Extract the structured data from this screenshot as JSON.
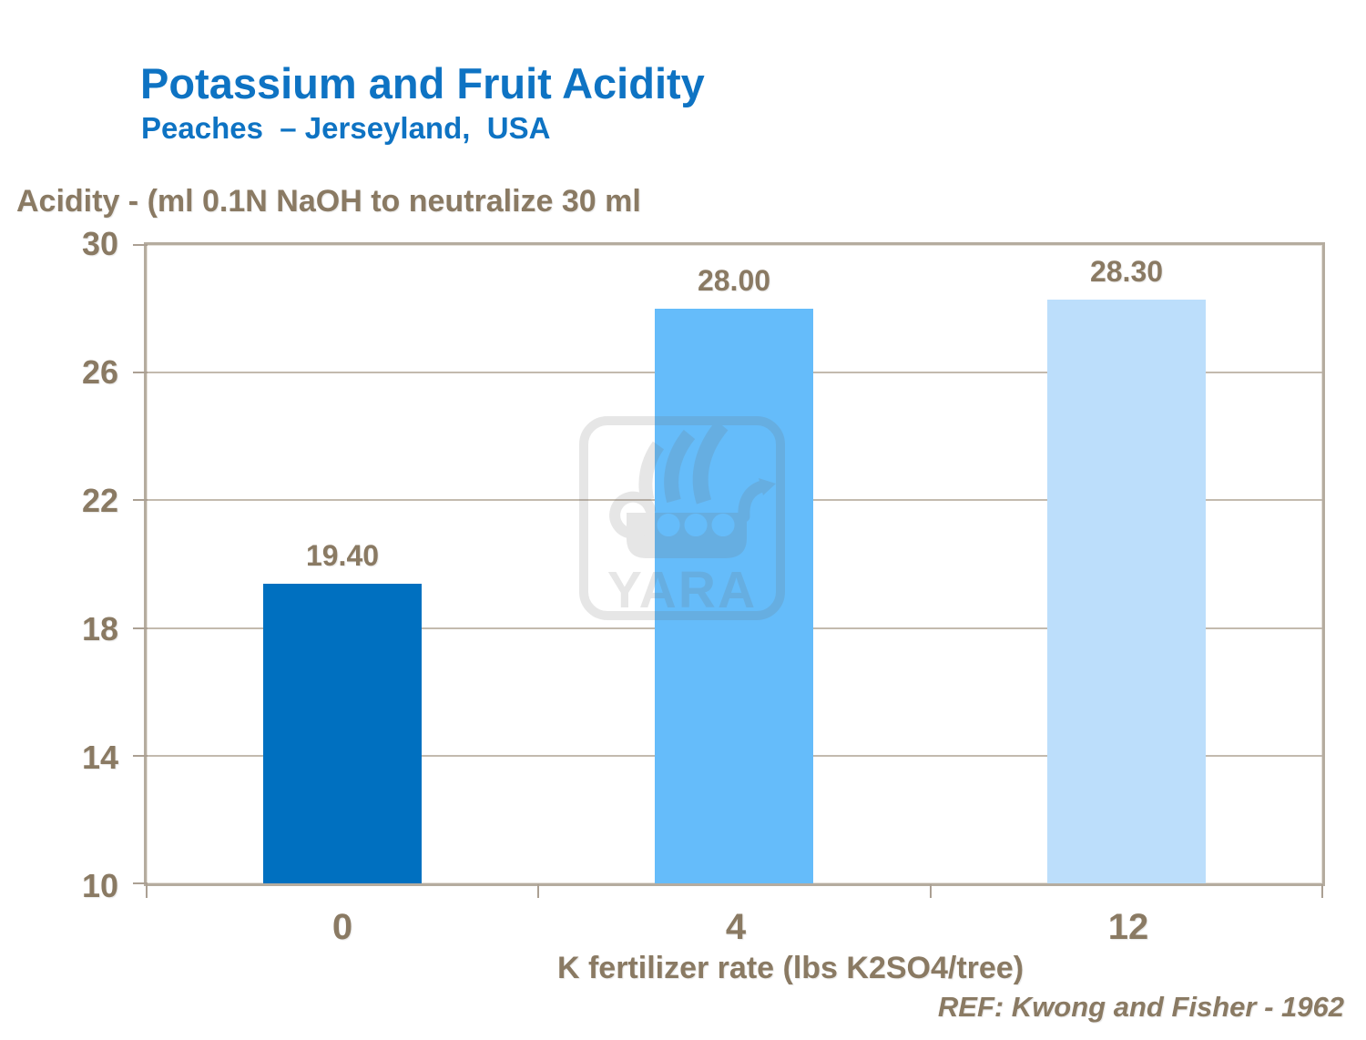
{
  "header": {
    "title": "Potassium and Fruit Acidity",
    "subtitle": "Peaches  – Jerseyland,  USA"
  },
  "watermark": {
    "text": "YARA",
    "icon": "yara-viking-ship-logo"
  },
  "footer": {
    "reference": "REF: Kwong and Fisher - 1962"
  },
  "colors": {
    "title_blue": "#0E73C3",
    "axis_text_brown": "#8A7A63",
    "frame_tan": "#B5AC9F",
    "gridline_tan": "#C3BAAE",
    "bar_dark_blue": "#0070C0",
    "bar_medium_blue": "#65BCFA",
    "bar_light_blue": "#BCDEFB"
  },
  "chart_data": {
    "type": "bar",
    "title": "Potassium and Fruit Acidity",
    "subtitle": "Peaches – Jerseyland, USA",
    "categories": [
      "0",
      "4",
      "12"
    ],
    "values": [
      19.4,
      28.0,
      28.3
    ],
    "value_labels": [
      "19.40",
      "28.00",
      "28.30"
    ],
    "bar_colors": [
      "#0070C0",
      "#65BCFA",
      "#BCDEFB"
    ],
    "xlabel": "K fertilizer rate (lbs K2SO4/tree)",
    "ylabel": "Acidity - (ml 0.1N NaOH to neutralize 30 ml",
    "ylim": [
      10,
      30
    ],
    "yticks": [
      30,
      26,
      22,
      18,
      14,
      10
    ],
    "ytick_labels": [
      "30",
      "26",
      "22",
      "18",
      "14",
      "10"
    ],
    "grid": true,
    "legend": "none",
    "reference": "REF: Kwong and Fisher - 1962"
  }
}
